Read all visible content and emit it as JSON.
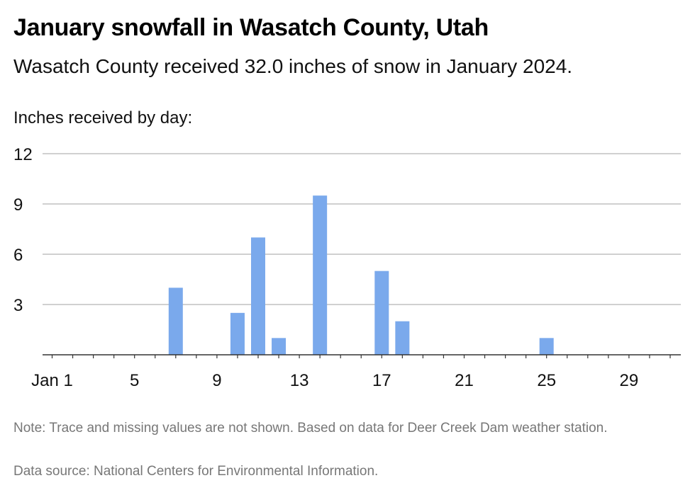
{
  "header": {
    "title": "January snowfall in Wasatch County, Utah",
    "subtitle": "Wasatch County received 32.0 inches of snow in January 2024."
  },
  "footer": {
    "note": "Note: Trace and missing values are not shown. Based on data for Deer Creek Dam weather station.",
    "source": "Data source: National Centers for Environmental Information."
  },
  "chart_data": {
    "type": "bar",
    "title": "January snowfall in Wasatch County, Utah",
    "subtitle": "Wasatch County received 32.0 inches of snow in January 2024.",
    "ylabel": "Inches received by day:",
    "xlabel": "",
    "x": [
      7,
      10,
      11,
      12,
      14,
      17,
      18,
      25
    ],
    "values": [
      4,
      2.5,
      7,
      1,
      9.5,
      5,
      2,
      1
    ],
    "xlim": [
      1,
      31
    ],
    "ylim": [
      0,
      12
    ],
    "yticks": [
      3,
      6,
      9,
      12
    ],
    "xticks": [
      1,
      5,
      9,
      13,
      17,
      21,
      25,
      29
    ],
    "xtick_labels": [
      "Jan 1",
      "5",
      "9",
      "13",
      "17",
      "21",
      "25",
      "29"
    ],
    "grid": true,
    "bar_color": "#7aa9ec",
    "grid_color": "#b5b5b5",
    "axis_color": "#333333"
  }
}
